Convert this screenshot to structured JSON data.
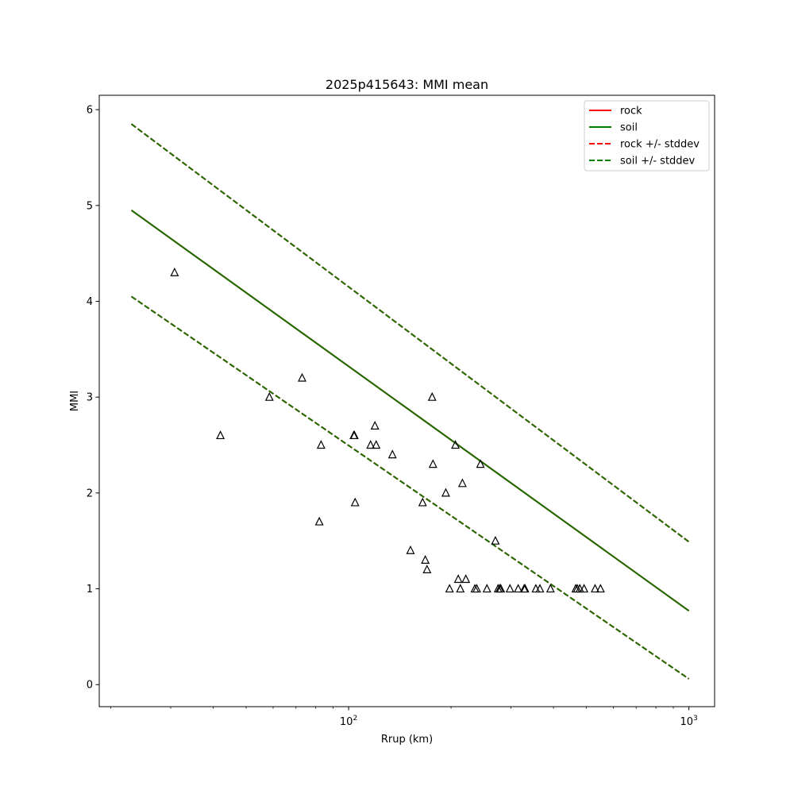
{
  "chart_data": {
    "type": "scatter",
    "title": "2025p415643: MMI mean",
    "xlabel": "Rrup (km)",
    "ylabel": "MMI",
    "xscale": "log",
    "xlim": [
      18.5,
      1190
    ],
    "ylim": [
      -0.23,
      6.15
    ],
    "x_ticks": [
      {
        "value": 100,
        "base": "10",
        "exp": "2"
      },
      {
        "value": 1000,
        "base": "10",
        "exp": "3"
      }
    ],
    "x_minor_ticks": [
      20,
      30,
      40,
      50,
      60,
      70,
      80,
      90,
      200,
      300,
      400,
      500,
      600,
      700,
      800,
      900
    ],
    "y_ticks": [
      0,
      1,
      2,
      3,
      4,
      5,
      6
    ],
    "grid": false,
    "legend_position": "top-right",
    "legend": [
      {
        "label": "rock",
        "color": "#ff0000",
        "dash": "solid"
      },
      {
        "label": "soil",
        "color": "#008000",
        "dash": "solid"
      },
      {
        "label": "rock +/- stddev",
        "color": "#ff0000",
        "dash": "dashed"
      },
      {
        "label": "soil +/- stddev",
        "color": "#008000",
        "dash": "dashed"
      }
    ],
    "series": [
      {
        "name": "rock",
        "color": "#ff0000",
        "dash": "solid",
        "x": [
          23,
          1000
        ],
        "y": [
          4.95,
          0.77
        ]
      },
      {
        "name": "soil",
        "color": "#1a6e00",
        "dash": "solid",
        "x": [
          23,
          1000
        ],
        "y": [
          4.95,
          0.77
        ]
      },
      {
        "name": "rock +/- stddev",
        "color": "#ff0000",
        "dash": "dashed",
        "x": [
          23,
          1000
        ],
        "y": [
          5.85,
          1.49
        ]
      },
      {
        "name": "rock +/- stddev",
        "color": "#ff0000",
        "dash": "dashed",
        "x": [
          23,
          1000
        ],
        "y": [
          4.05,
          0.06
        ]
      },
      {
        "name": "soil +/- stddev",
        "color": "#1a6e00",
        "dash": "dashed",
        "x": [
          23,
          1000
        ],
        "y": [
          5.85,
          1.49
        ]
      },
      {
        "name": "soil +/- stddev",
        "color": "#1a6e00",
        "dash": "dashed",
        "x": [
          23,
          1000
        ],
        "y": [
          4.05,
          0.06
        ]
      }
    ],
    "observations": {
      "marker": "triangle-open",
      "color": "#000000",
      "points": [
        [
          30.8,
          4.3
        ],
        [
          42,
          2.6
        ],
        [
          58.5,
          3.0
        ],
        [
          73,
          3.2
        ],
        [
          83,
          2.5
        ],
        [
          82,
          1.7
        ],
        [
          103.6,
          2.6
        ],
        [
          104,
          2.6
        ],
        [
          104.5,
          1.9
        ],
        [
          116,
          2.5
        ],
        [
          119.5,
          2.7
        ],
        [
          120.5,
          2.5
        ],
        [
          134.5,
          2.4
        ],
        [
          152,
          1.4
        ],
        [
          165,
          1.9
        ],
        [
          168,
          1.3
        ],
        [
          170,
          1.2
        ],
        [
          176,
          3.0
        ],
        [
          177,
          2.3
        ],
        [
          193,
          2.0
        ],
        [
          198,
          1.0
        ],
        [
          206,
          2.5
        ],
        [
          210,
          1.1
        ],
        [
          213,
          1.0
        ],
        [
          216,
          2.1
        ],
        [
          221,
          1.1
        ],
        [
          235,
          1.0
        ],
        [
          238,
          1.0
        ],
        [
          244,
          2.3
        ],
        [
          255,
          1.0
        ],
        [
          270,
          1.5
        ],
        [
          275,
          1.0
        ],
        [
          278,
          1.0
        ],
        [
          280,
          1.0
        ],
        [
          298,
          1.0
        ],
        [
          315,
          1.0
        ],
        [
          328,
          1.0
        ],
        [
          330,
          1.0
        ],
        [
          355,
          1.0
        ],
        [
          365,
          1.0
        ],
        [
          392,
          1.0
        ],
        [
          465,
          1.0
        ],
        [
          470,
          1.0
        ],
        [
          478,
          1.0
        ],
        [
          492,
          1.0
        ],
        [
          530,
          1.0
        ],
        [
          550,
          1.0
        ]
      ]
    }
  }
}
